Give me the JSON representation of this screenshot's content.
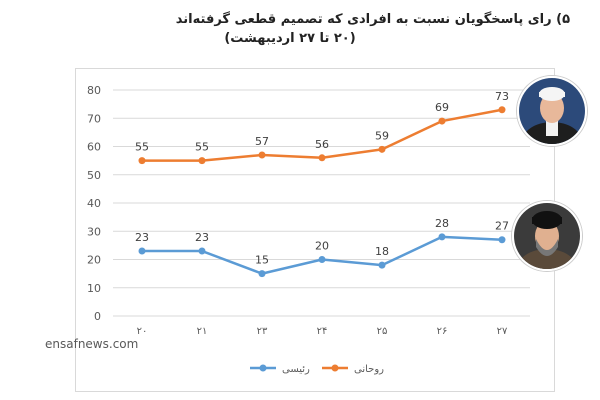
{
  "page": {
    "title_line1": "۵) رای پاسخگویان نسبت به افرادی که تصمیم قطعی گرفته‌اند",
    "title_line2": "(۲۰ تا ۲۷ اردیبهشت)",
    "watermark": "ensafnews.com"
  },
  "icons": {
    "portrait_top": "portrait-photo-icon",
    "portrait_bottom": "portrait-photo-icon"
  },
  "chart_data": {
    "type": "line",
    "categories": [
      "۲۰",
      "۲۱",
      "۲۳",
      "۲۴",
      "۲۵",
      "۲۶",
      "۲۷"
    ],
    "ylim": [
      0,
      80
    ],
    "yticks": [
      "0",
      "10",
      "20",
      "30",
      "40",
      "50",
      "60",
      "70",
      "80"
    ],
    "grid": true,
    "legend_position": "bottom",
    "series": [
      {
        "name": "رئیسی",
        "color": "#5b9bd5",
        "values": [
          23,
          23,
          15,
          20,
          18,
          28,
          27
        ]
      },
      {
        "name": "روحانی",
        "color": "#ed7d31",
        "values": [
          55,
          55,
          57,
          56,
          59,
          69,
          73
        ]
      }
    ]
  }
}
